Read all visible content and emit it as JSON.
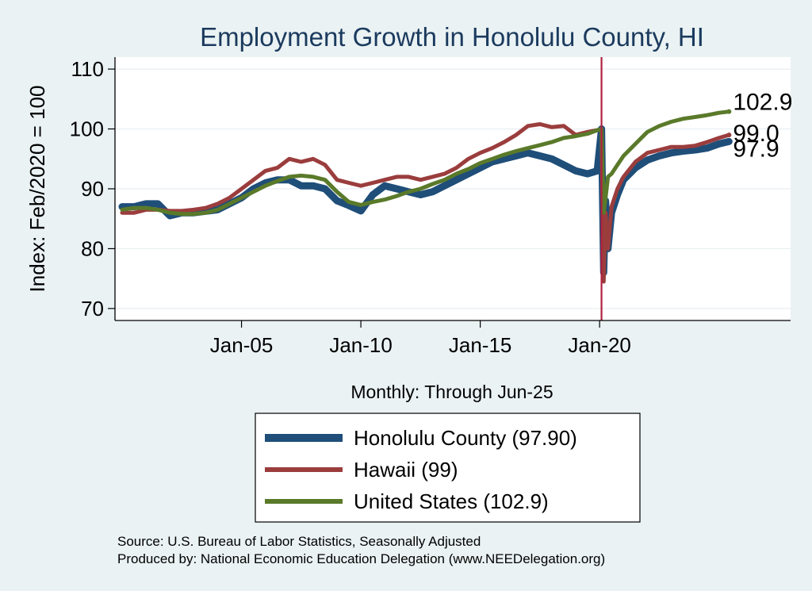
{
  "chart_data": {
    "type": "line",
    "title": "Employment Growth in Honolulu  County, HI",
    "xlabel": "Monthly: Through Jun-25",
    "ylabel": "Index: Feb/2020 = 100",
    "ylim": [
      68,
      112
    ],
    "yticks": [
      70,
      80,
      90,
      100,
      110
    ],
    "yticklabels": [
      "70",
      "80",
      "90",
      "100",
      "110"
    ],
    "xrange": [
      1999.7,
      2028.0
    ],
    "xticks": [
      2005,
      2010,
      2015,
      2020
    ],
    "xticklabels": [
      "Jan-05",
      "Jan-10",
      "Jan-15",
      "Jan-20"
    ],
    "vline_x": 2020.08,
    "series": [
      {
        "name": "Honolulu  County (97.90)",
        "color": "#1f4e79",
        "end_label": "97.9",
        "x": [
          2000.0,
          2000.5,
          2001.0,
          2001.5,
          2002.0,
          2002.5,
          2003.0,
          2004.0,
          2004.5,
          2005.0,
          2005.5,
          2006.0,
          2006.5,
          2007.0,
          2007.5,
          2008.0,
          2008.5,
          2009.0,
          2009.5,
          2010.0,
          2010.5,
          2011.0,
          2011.5,
          2012.0,
          2012.5,
          2013.0,
          2013.5,
          2014.0,
          2014.5,
          2015.0,
          2015.5,
          2016.0,
          2016.5,
          2017.0,
          2017.5,
          2018.0,
          2018.5,
          2019.0,
          2019.5,
          2019.9,
          2020.08,
          2020.17,
          2020.25,
          2020.35,
          2020.5,
          2020.75,
          2021.0,
          2021.5,
          2022.0,
          2022.5,
          2023.0,
          2023.5,
          2024.0,
          2024.5,
          2025.0,
          2025.42
        ],
        "y": [
          87,
          87,
          87.5,
          87.5,
          85.5,
          86,
          86,
          86.5,
          87.5,
          88.5,
          90,
          91,
          91.5,
          91.5,
          90.5,
          90.5,
          90,
          88,
          87.2,
          86.3,
          89,
          90.5,
          90,
          89.5,
          89,
          89.5,
          90.5,
          91.5,
          92.5,
          93.5,
          94.5,
          95,
          95.5,
          96,
          95.5,
          95,
          94,
          93,
          92.5,
          93,
          100,
          76,
          88,
          80,
          86,
          89,
          91.5,
          93.5,
          94.8,
          95.5,
          96,
          96.3,
          96.5,
          96.8,
          97.5,
          97.9
        ]
      },
      {
        "name": "Hawaii (99)",
        "color": "#9b3d3d",
        "end_label": "99.0",
        "x": [
          2000.0,
          2000.5,
          2001.0,
          2001.5,
          2002.0,
          2002.5,
          2003.0,
          2003.5,
          2004.0,
          2004.5,
          2005.0,
          2005.5,
          2006.0,
          2006.5,
          2007.0,
          2007.5,
          2008.0,
          2008.5,
          2009.0,
          2009.5,
          2010.0,
          2010.5,
          2011.0,
          2011.5,
          2012.0,
          2012.5,
          2013.0,
          2013.5,
          2014.0,
          2014.5,
          2015.0,
          2015.5,
          2016.0,
          2016.5,
          2017.0,
          2017.5,
          2018.0,
          2018.5,
          2019.0,
          2019.5,
          2019.9,
          2020.08,
          2020.17,
          2020.25,
          2020.35,
          2020.5,
          2020.75,
          2021.0,
          2021.5,
          2022.0,
          2022.5,
          2023.0,
          2023.5,
          2024.0,
          2024.5,
          2025.0,
          2025.42
        ],
        "y": [
          86,
          86,
          86.5,
          86.5,
          86.3,
          86.3,
          86.5,
          86.8,
          87.5,
          88.5,
          90,
          91.5,
          93,
          93.5,
          95,
          94.5,
          95,
          94,
          91.5,
          91,
          90.5,
          91,
          91.5,
          92,
          92,
          91.5,
          92,
          92.5,
          93.5,
          95,
          96,
          96.8,
          97.8,
          99,
          100.5,
          100.8,
          100.3,
          100.5,
          99,
          99.5,
          99.8,
          100,
          74.5,
          86,
          80,
          87,
          90,
          92,
          94.5,
          96,
          96.5,
          97,
          97,
          97.2,
          97.8,
          98.5,
          99.0
        ]
      },
      {
        "name": "United States (102.9)",
        "color": "#5a7a2a",
        "end_label": "102.9",
        "x": [
          2000.0,
          2000.5,
          2001.0,
          2001.5,
          2002.0,
          2002.5,
          2003.0,
          2003.5,
          2004.0,
          2004.5,
          2005.0,
          2005.5,
          2006.0,
          2006.5,
          2007.0,
          2007.5,
          2008.0,
          2008.5,
          2009.0,
          2009.5,
          2010.0,
          2010.5,
          2011.0,
          2011.5,
          2012.0,
          2012.5,
          2013.0,
          2013.5,
          2014.0,
          2014.5,
          2015.0,
          2015.5,
          2016.0,
          2016.5,
          2017.0,
          2017.5,
          2018.0,
          2018.5,
          2019.0,
          2019.5,
          2019.9,
          2020.08,
          2020.17,
          2020.25,
          2020.35,
          2020.5,
          2020.75,
          2021.0,
          2021.5,
          2022.0,
          2022.5,
          2023.0,
          2023.5,
          2024.0,
          2024.5,
          2025.0,
          2025.42
        ],
        "y": [
          86.5,
          86.8,
          86.8,
          86.5,
          86,
          85.8,
          85.8,
          86,
          86.5,
          87.5,
          88.5,
          89.5,
          90.5,
          91.3,
          92,
          92.2,
          92,
          91.5,
          89.5,
          87.8,
          87.3,
          87.8,
          88.2,
          88.8,
          89.5,
          90,
          90.8,
          91.5,
          92.5,
          93.3,
          94.3,
          95,
          95.7,
          96.3,
          96.8,
          97.3,
          97.8,
          98.5,
          98.8,
          99.2,
          99.8,
          100,
          86,
          88.5,
          92,
          92.5,
          94,
          95.5,
          97.5,
          99.5,
          100.5,
          101.2,
          101.7,
          102,
          102.3,
          102.7,
          102.9
        ]
      }
    ],
    "legend": {
      "placement": "bottom"
    },
    "source_lines": [
      "Source: U.S. Bureau of Labor Statistics, Seasonally Adjusted",
      "Produced by: National Economic Education Delegation (www.NEEDelegation.org)"
    ]
  }
}
